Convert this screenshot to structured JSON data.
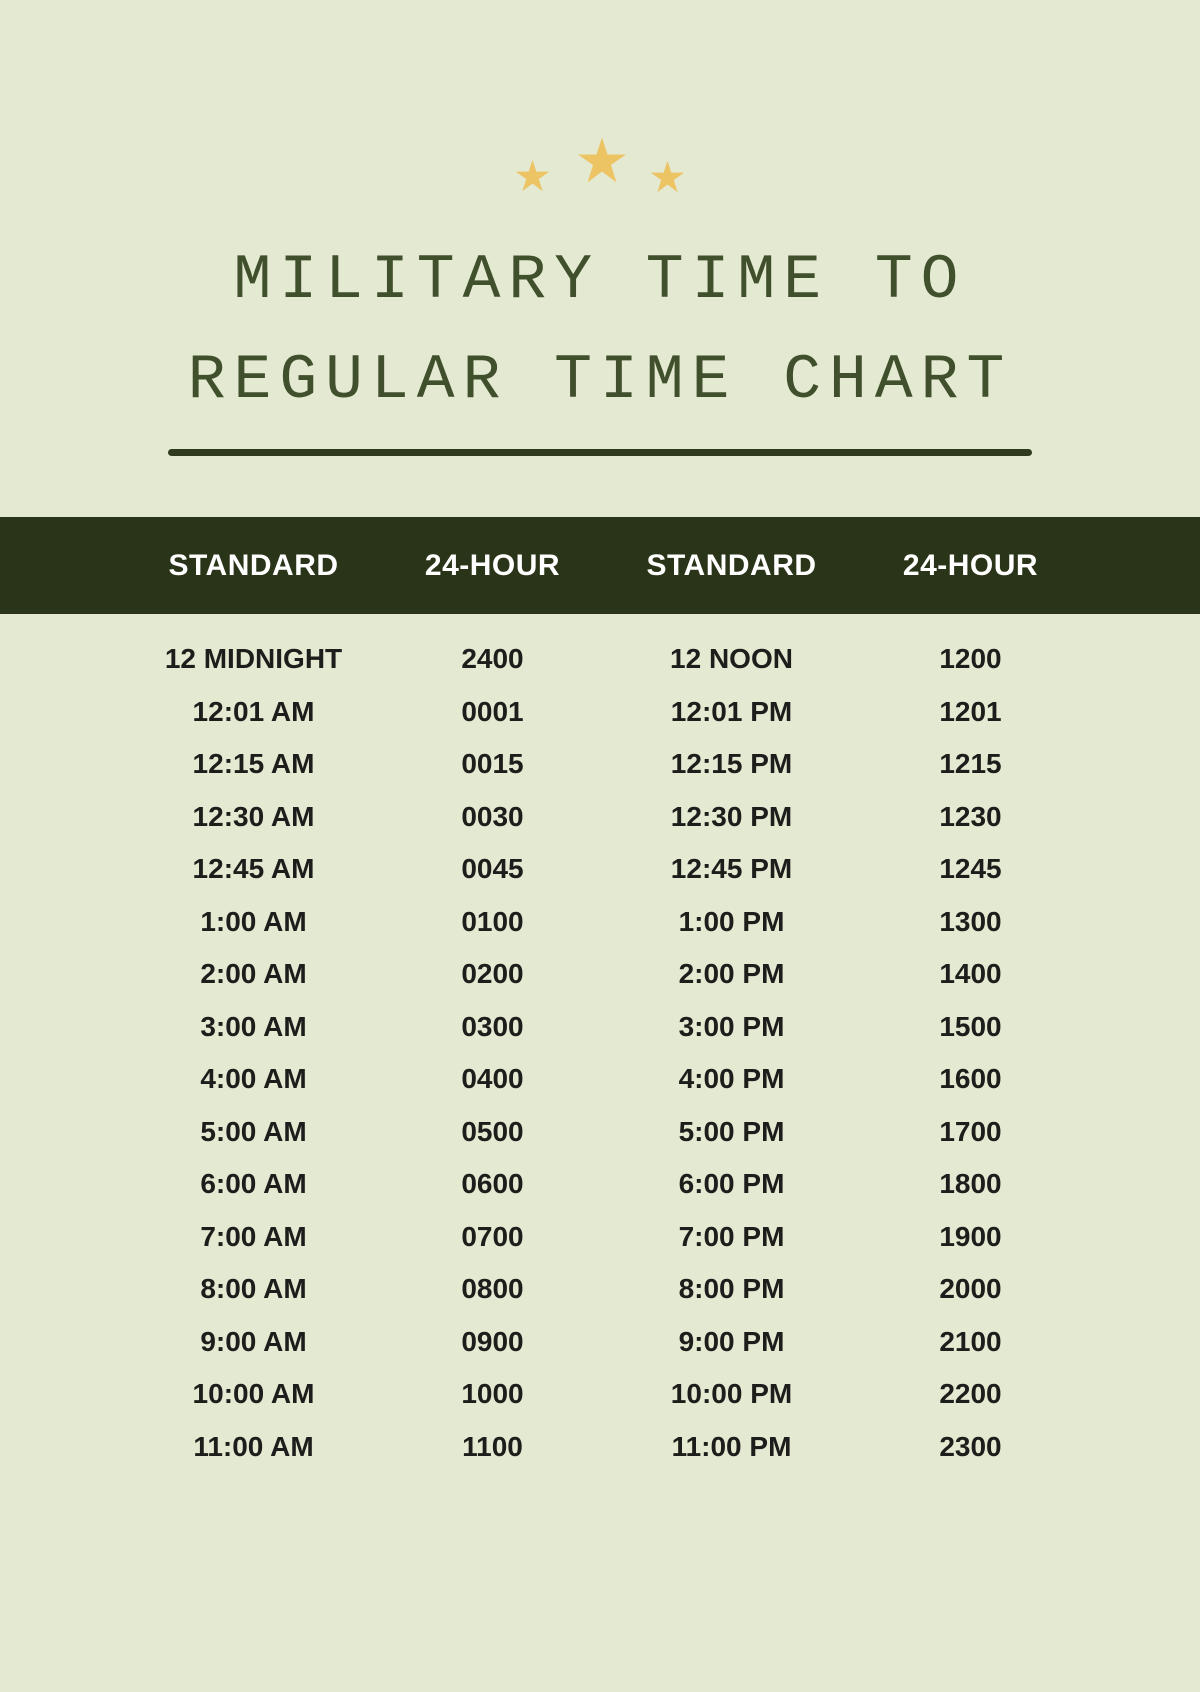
{
  "colors": {
    "background": "#e4e9d2",
    "band": "#293418",
    "title_text": "#41502c",
    "divider": "#2e3c1d",
    "body_text": "#1d1d1b",
    "header_text": "#ffffff",
    "star": "#edc464"
  },
  "title": {
    "line1": "MILITARY TIME TO",
    "line2": "REGULAR TIME CHART"
  },
  "table": {
    "headers": [
      "STANDARD",
      "24-HOUR",
      "STANDARD",
      "24-HOUR"
    ],
    "rows": [
      [
        "12 MIDNIGHT",
        "2400",
        "12 NOON",
        "1200"
      ],
      [
        "12:01 AM",
        "0001",
        "12:01 PM",
        "1201"
      ],
      [
        "12:15 AM",
        "0015",
        "12:15 PM",
        "1215"
      ],
      [
        "12:30 AM",
        "0030",
        "12:30 PM",
        "1230"
      ],
      [
        "12:45 AM",
        "0045",
        "12:45 PM",
        "1245"
      ],
      [
        "1:00 AM",
        "0100",
        "1:00 PM",
        "1300"
      ],
      [
        "2:00 AM",
        "0200",
        "2:00 PM",
        "1400"
      ],
      [
        "3:00 AM",
        "0300",
        "3:00 PM",
        "1500"
      ],
      [
        "4:00 AM",
        "0400",
        "4:00 PM",
        "1600"
      ],
      [
        "5:00 AM",
        "0500",
        "5:00 PM",
        "1700"
      ],
      [
        "6:00 AM",
        "0600",
        "6:00 PM",
        "1800"
      ],
      [
        "7:00 AM",
        "0700",
        "7:00 PM",
        "1900"
      ],
      [
        "8:00 AM",
        "0800",
        "8:00 PM",
        "2000"
      ],
      [
        "9:00 AM",
        "0900",
        "9:00 PM",
        "2100"
      ],
      [
        "10:00 AM",
        "1000",
        "10:00 PM",
        "2200"
      ],
      [
        "11:00 AM",
        "1100",
        "11:00 PM",
        "2300"
      ]
    ]
  }
}
